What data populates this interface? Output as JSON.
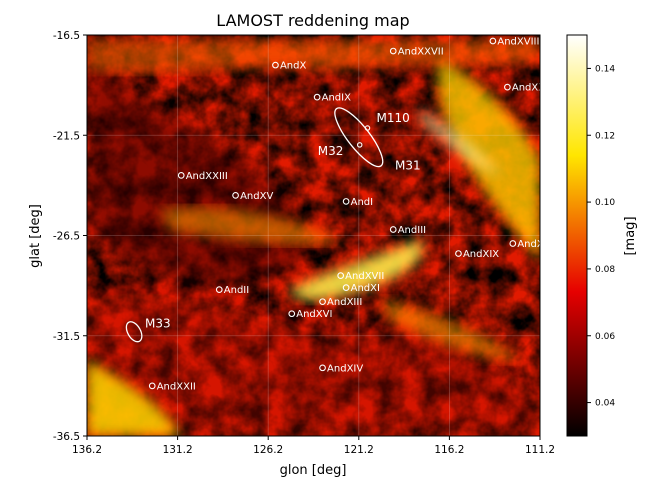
{
  "chart_data": {
    "type": "heatmap",
    "title": "LAMOST reddening map",
    "xlabel": "glon [deg]",
    "ylabel": "glat [deg]",
    "xlim": [
      136.2,
      111.2
    ],
    "ylim": [
      -36.5,
      -16.5
    ],
    "xticks": [
      "136.2",
      "131.2",
      "126.2",
      "121.2",
      "116.2",
      "111.2"
    ],
    "xtick_values": [
      136.2,
      131.2,
      126.2,
      121.2,
      116.2,
      111.2
    ],
    "yticks": [
      "-16.5",
      "-21.5",
      "-26.5",
      "-31.5",
      "-36.5"
    ],
    "ytick_values": [
      -16.5,
      -21.5,
      -26.5,
      -31.5,
      -36.5
    ],
    "grid": true,
    "colormap": "hot",
    "colorbar": {
      "label": "[mag]",
      "range": [
        0.03,
        0.15
      ],
      "ticks": [
        "0.04",
        "0.06",
        "0.08",
        "0.10",
        "0.12",
        "0.14"
      ],
      "tick_values": [
        0.04,
        0.06,
        0.08,
        0.1,
        0.12,
        0.14
      ]
    },
    "features": [
      {
        "kind": "band",
        "note": "high reddening filaments",
        "points": [
          [
            126.0,
            -29.5
          ],
          [
            122.0,
            -28.0
          ],
          [
            118.0,
            -27.0
          ]
        ]
      },
      {
        "kind": "band",
        "note": "upper-right high reddening",
        "points": [
          [
            116.5,
            -19.0
          ],
          [
            114.0,
            -21.5
          ],
          [
            112.0,
            -24.0
          ]
        ]
      }
    ],
    "objects": [
      {
        "name": "AndX",
        "glon": 125.8,
        "glat": -18.0
      },
      {
        "name": "AndXXVII",
        "glon": 119.3,
        "glat": -17.3
      },
      {
        "name": "AndXVIII",
        "glon": 113.8,
        "glat": -16.8
      },
      {
        "name": "AndXXI",
        "glon": 113.0,
        "glat": -19.1
      },
      {
        "name": "AndIX",
        "glon": 123.5,
        "glat": -19.6
      },
      {
        "name": "AndXXIII",
        "glon": 131.0,
        "glat": -23.5
      },
      {
        "name": "AndXV",
        "glon": 128.0,
        "glat": -24.5
      },
      {
        "name": "AndI",
        "glon": 121.9,
        "glat": -24.8
      },
      {
        "name": "AndIII",
        "glon": 119.3,
        "glat": -26.2
      },
      {
        "name": "AndXIX",
        "glon": 115.7,
        "glat": -27.4
      },
      {
        "name": "AndXX",
        "glon": 112.7,
        "glat": -26.9
      },
      {
        "name": "AndXVII",
        "glon": 122.2,
        "glat": -28.5
      },
      {
        "name": "AndXI",
        "glon": 121.9,
        "glat": -29.1
      },
      {
        "name": "AndII",
        "glon": 128.9,
        "glat": -29.2
      },
      {
        "name": "AndXIII",
        "glon": 123.2,
        "glat": -29.8
      },
      {
        "name": "AndXVI",
        "glon": 124.9,
        "glat": -30.4
      },
      {
        "name": "AndXIV",
        "glon": 123.2,
        "glat": -33.1
      },
      {
        "name": "AndXXII",
        "glon": 132.6,
        "glat": -34.0
      }
    ],
    "galaxies": [
      {
        "name": "M31",
        "glon": 121.2,
        "glat": -21.6,
        "ellipse": {
          "a_deg": 2.0,
          "b_deg": 0.6,
          "angle": 52
        },
        "label_offset": [
          -2.0,
          -1.4
        ]
      },
      {
        "name": "M32",
        "glon": 121.15,
        "glat": -21.98,
        "label_offset": [
          0.9,
          -0.3
        ]
      },
      {
        "name": "M110",
        "glon": 120.72,
        "glat": -21.14,
        "label_offset": [
          -0.5,
          0.5
        ]
      },
      {
        "name": "M33",
        "glon": 133.6,
        "glat": -31.3,
        "ellipse": {
          "a_deg": 0.6,
          "b_deg": 0.35,
          "angle": 60
        },
        "label_offset": [
          -0.6,
          0.4
        ]
      }
    ]
  }
}
